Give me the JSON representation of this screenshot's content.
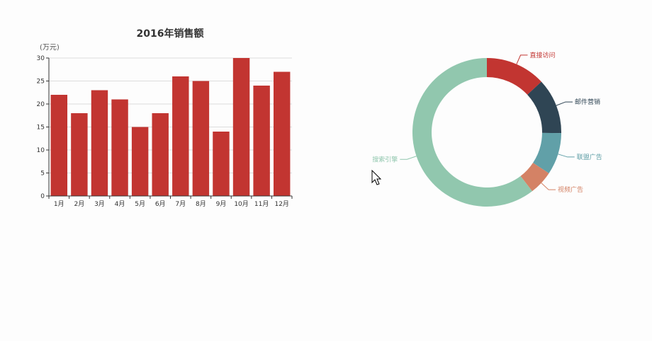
{
  "chart_data": [
    {
      "type": "bar",
      "title": "2016年销售额",
      "ylabel": "(万元)",
      "xlabel": "",
      "categories": [
        "1月",
        "2月",
        "3月",
        "4月",
        "5月",
        "6月",
        "7月",
        "8月",
        "9月",
        "10月",
        "11月",
        "12月"
      ],
      "values": [
        22,
        18,
        23,
        21,
        15,
        18,
        26,
        25,
        14,
        30,
        24,
        27
      ],
      "ylim": [
        0,
        30
      ],
      "yticks": [
        0,
        5,
        10,
        15,
        20,
        25,
        30
      ],
      "grid": true,
      "color": "#c23531"
    },
    {
      "type": "pie",
      "variant": "donut",
      "slices": [
        {
          "name": "直接访问",
          "value": 335,
          "color": "#c23531"
        },
        {
          "name": "邮件营销",
          "value": 310,
          "color": "#2f4554"
        },
        {
          "name": "联盟广告",
          "value": 234,
          "color": "#61a0a8"
        },
        {
          "name": "视频广告",
          "value": 135,
          "color": "#d48265"
        },
        {
          "name": "搜索引擎",
          "value": 1548,
          "color": "#91c7ae"
        }
      ]
    }
  ],
  "cursor": {
    "icon": "mouse-pointer-icon"
  }
}
